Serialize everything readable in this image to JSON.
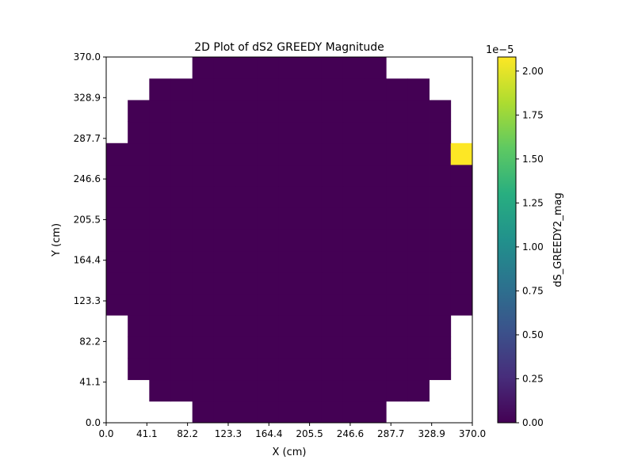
{
  "chart_data": {
    "type": "heatmap",
    "title": "2D Plot of dS2 GREEDY Magnitude",
    "xlabel": "X (cm)",
    "ylabel": "Y (cm)",
    "x_ticks": [
      "0.0",
      "41.1",
      "82.2",
      "123.3",
      "164.4",
      "205.5",
      "246.6",
      "287.7",
      "328.9",
      "370.0"
    ],
    "y_ticks": [
      "0.0",
      "41.1",
      "82.2",
      "123.3",
      "164.4",
      "205.5",
      "246.6",
      "287.7",
      "328.9",
      "370.0"
    ],
    "xlim": [
      0,
      370
    ],
    "ylim": [
      0,
      370
    ],
    "grid": false,
    "grid_size": 17,
    "cell_size": 21.76,
    "background_value": 0.0,
    "unit_scale": 1e-05,
    "rows_comment_free": true,
    "row_extents": [
      [
        4,
        12
      ],
      [
        2,
        14
      ],
      [
        1,
        15
      ],
      [
        1,
        15
      ],
      [
        1,
        15
      ],
      [
        0,
        16
      ],
      [
        0,
        16
      ],
      [
        0,
        16
      ],
      [
        0,
        16
      ],
      [
        0,
        16
      ],
      [
        0,
        16
      ],
      [
        0,
        16
      ],
      [
        0,
        16
      ],
      [
        1,
        15
      ],
      [
        1,
        15
      ],
      [
        2,
        14
      ],
      [
        4,
        12
      ]
    ],
    "hot_cells": [
      {
        "row": 12,
        "col": 16,
        "value": 2.08e-05
      }
    ],
    "colorbar": {
      "label": "dS_GREEDY2_mag",
      "offset_text": "1e−5",
      "ticks": [
        "0.00",
        "0.25",
        "0.50",
        "0.75",
        "1.00",
        "1.25",
        "1.50",
        "1.75",
        "2.00"
      ],
      "range": [
        0,
        2.08
      ],
      "colormap": "viridis"
    }
  }
}
